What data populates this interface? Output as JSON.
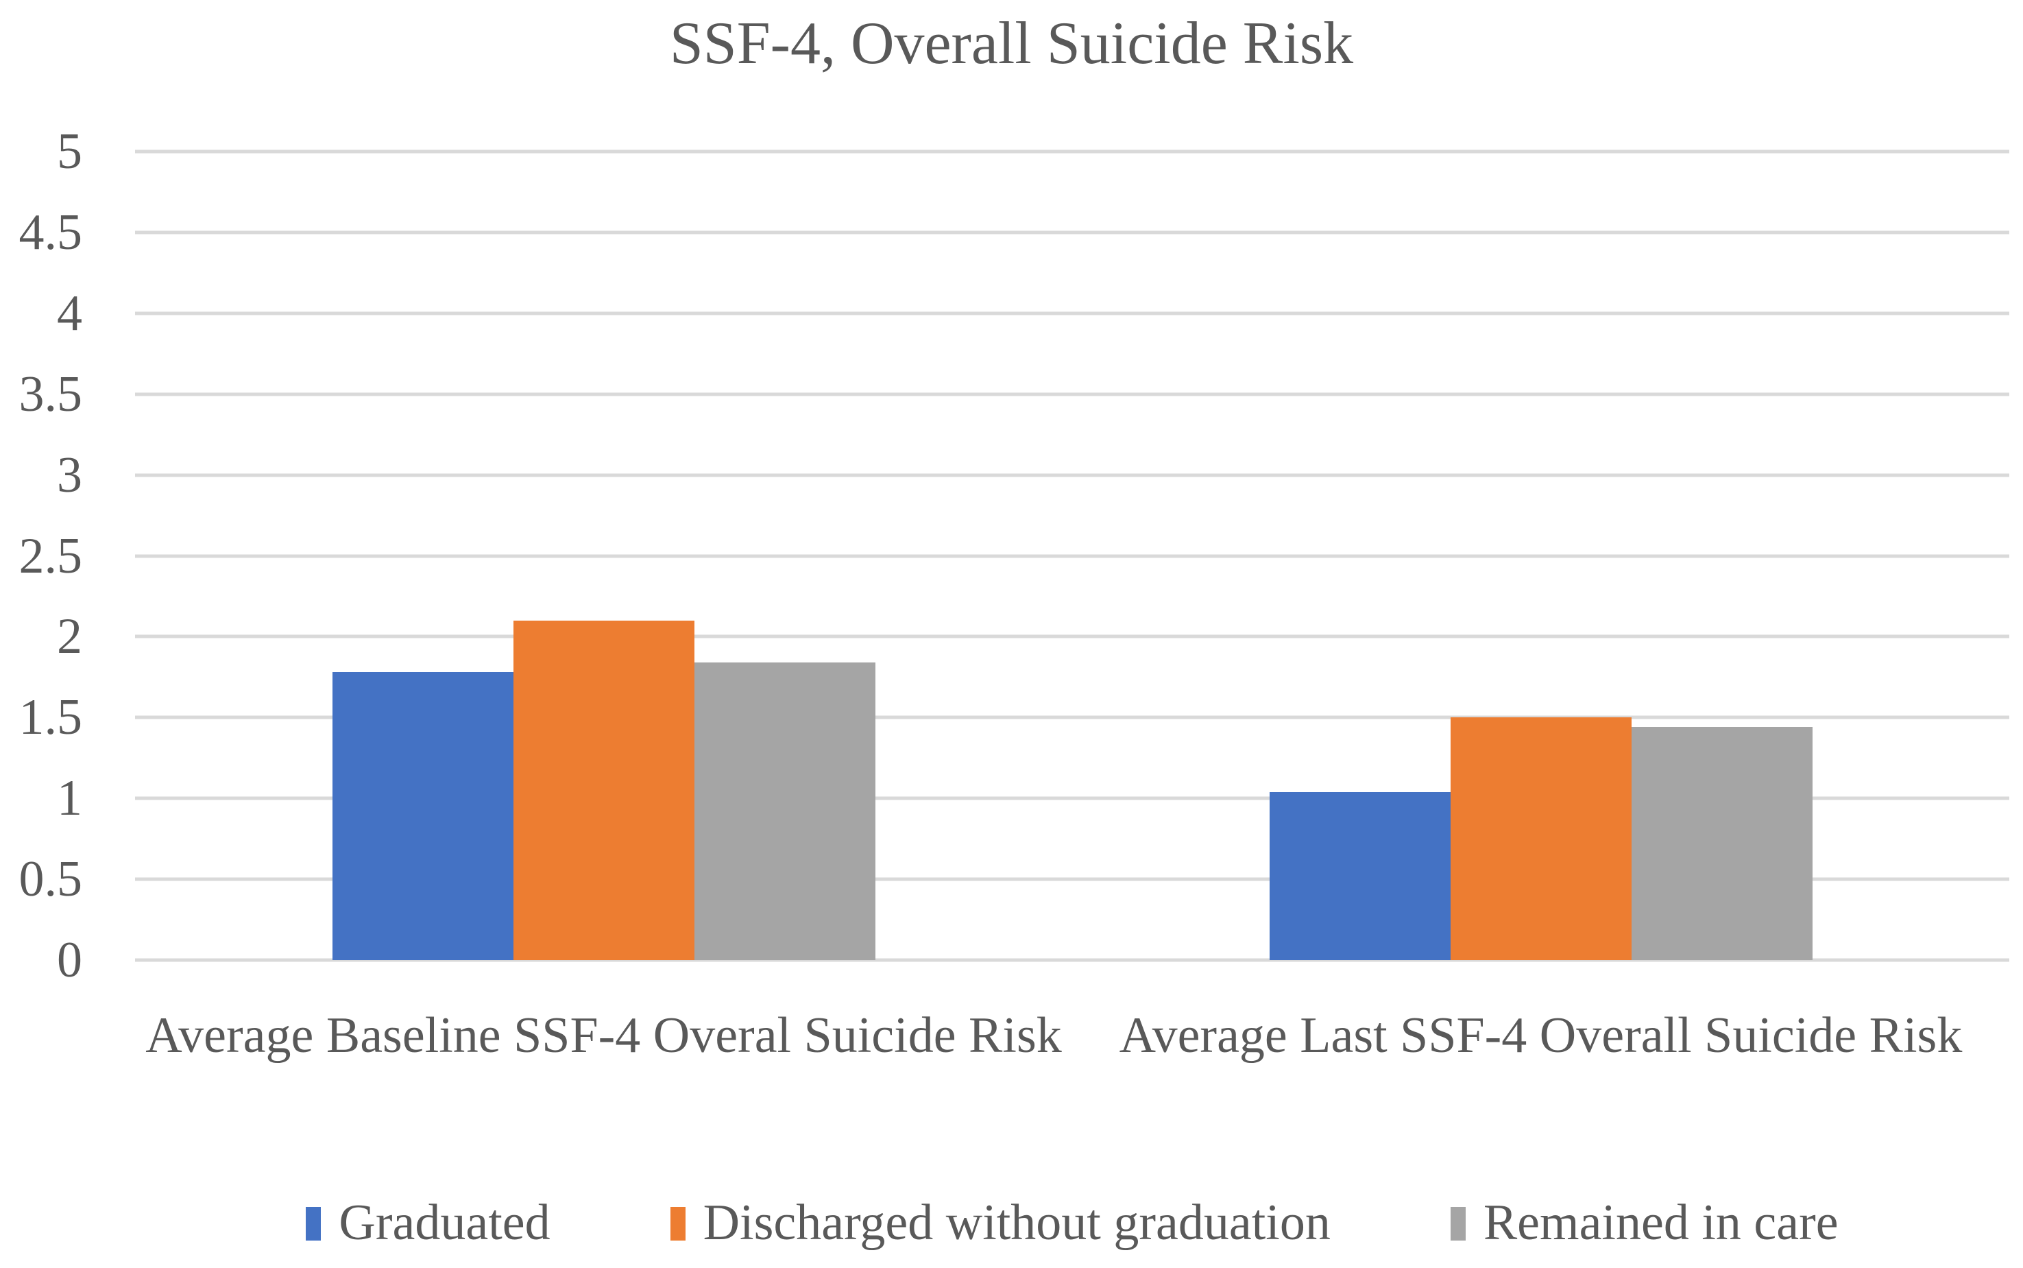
{
  "title": "SSF-4, Overall Suicide Risk",
  "chart_data": {
    "type": "bar",
    "title": "SSF-4, Overall Suicide Risk",
    "categories": [
      "Average Baseline SSF-4 Overal Suicide Risk",
      "Average Last SSF-4 Overall Suicide Risk"
    ],
    "series": [
      {
        "name": "Graduated",
        "color": "#4472C4",
        "values": [
          1.78,
          1.04
        ]
      },
      {
        "name": "Discharged without graduation",
        "color": "#ED7D31",
        "values": [
          2.1,
          1.5
        ]
      },
      {
        "name": "Remained in care",
        "color": "#A5A5A5",
        "values": [
          1.84,
          1.44
        ]
      }
    ],
    "y_axis": {
      "min": 0,
      "max": 5,
      "step": 0.5,
      "ticks": [
        "0",
        "0.5",
        "1",
        "1.5",
        "2",
        "2.5",
        "3",
        "3.5",
        "4",
        "4.5",
        "5"
      ]
    },
    "grid": true,
    "legend_position": "bottom",
    "colors": {
      "text": "#595959",
      "gridline": "#D9D9D9",
      "background": "#FFFFFF"
    }
  }
}
